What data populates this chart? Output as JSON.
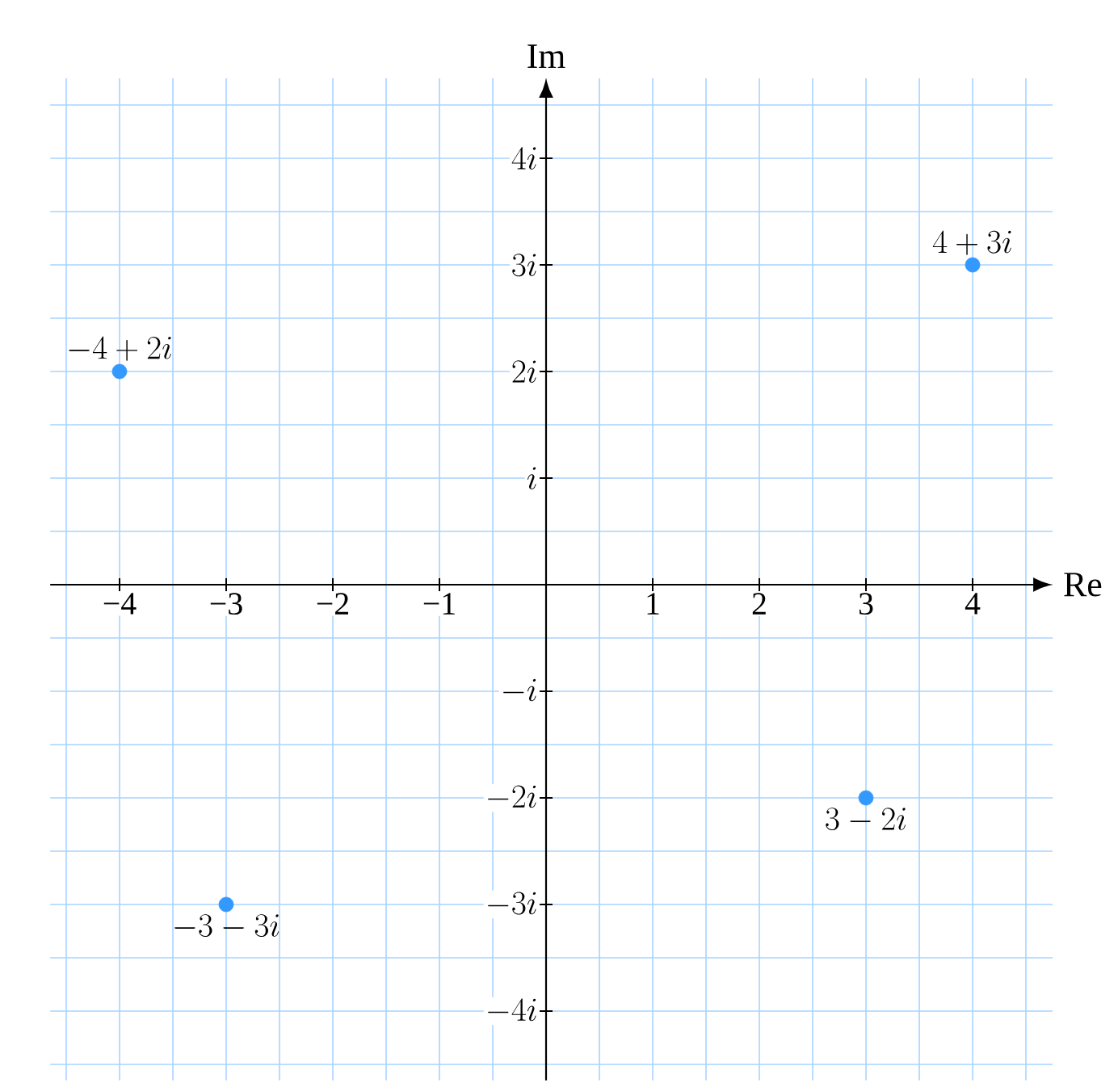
{
  "chart_data": {
    "type": "scatter",
    "xlabel": "Re",
    "ylabel": "Im",
    "xlim": [
      -4.65,
      4.75
    ],
    "ylim": [
      -4.65,
      4.75
    ],
    "xticks": [
      {
        "value": -4,
        "label": "−4"
      },
      {
        "value": -3,
        "label": "−3"
      },
      {
        "value": -2,
        "label": "−2"
      },
      {
        "value": -1,
        "label": "−1"
      },
      1,
      2,
      3,
      4
    ],
    "yticks": [
      {
        "value": -4,
        "label": "-4i"
      },
      {
        "value": -3,
        "label": "-3i"
      },
      {
        "value": -2,
        "label": "-2i"
      },
      {
        "value": -1,
        "label": "-i"
      },
      {
        "value": 1,
        "label": "i"
      },
      {
        "value": 2,
        "label": "2i"
      },
      {
        "value": 3,
        "label": "3i"
      },
      {
        "value": 4,
        "label": "4i"
      }
    ],
    "x": [
      4,
      -4,
      3,
      -3
    ],
    "series": [
      {
        "color": "#3399ff",
        "values": [
          3,
          2,
          -2,
          -3
        ]
      }
    ],
    "marker": "circle",
    "grid": true,
    "annotations": [
      {
        "text": "4+3i",
        "x": 4,
        "y": 3
      },
      {
        "text": "-4+2i",
        "x": -4,
        "y": 2
      },
      {
        "text": "3-2i",
        "x": 3,
        "y": -2
      },
      {
        "text": "-3-3i",
        "x": -3,
        "y": -3
      }
    ]
  }
}
